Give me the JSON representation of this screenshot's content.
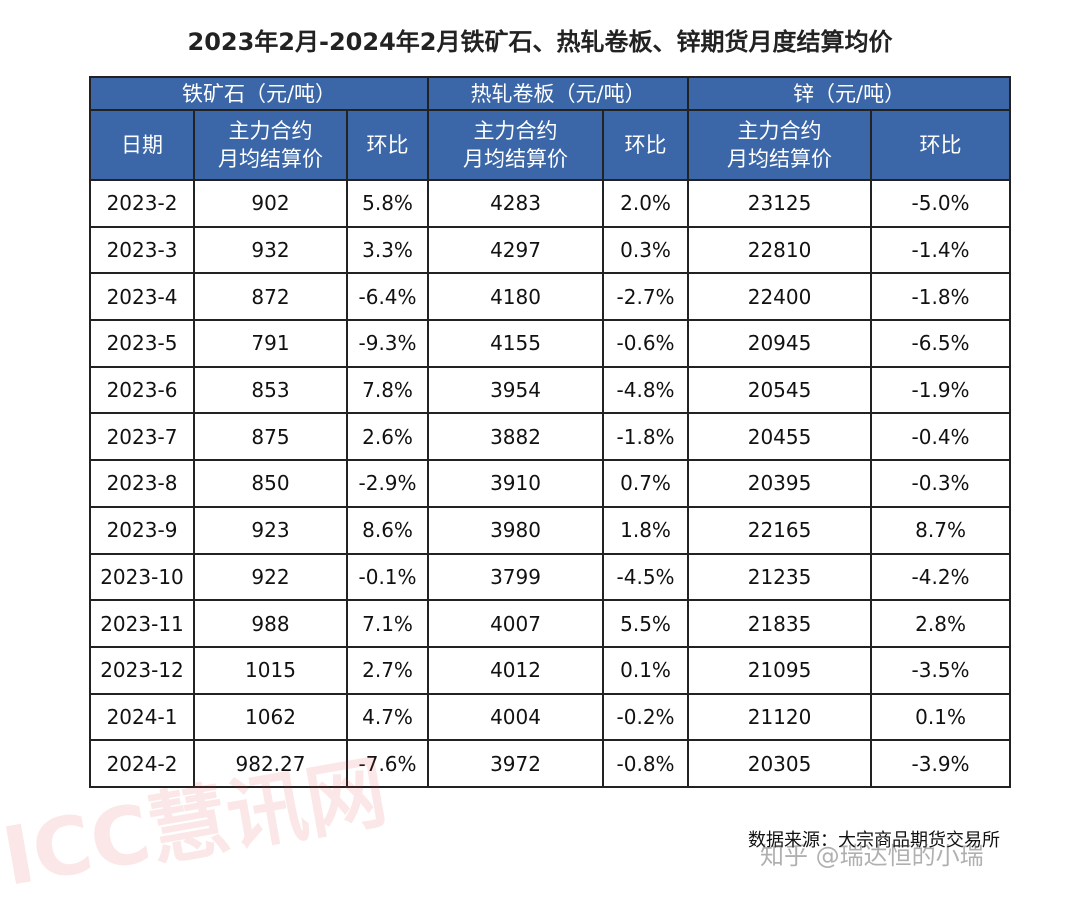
{
  "title": "2023年2月-2024年2月铁矿石、热轧卷板、锌期货月度结算均价",
  "table": {
    "groups": [
      "铁矿石（元/吨）",
      "热轧卷板（元/吨）",
      "锌（元/吨）"
    ],
    "columns": [
      "日期",
      "主力合约\n月均结算价",
      "环比",
      "主力合约\n月均结算价",
      "环比",
      "主力合约\n月均结算价",
      "环比"
    ],
    "rows": [
      [
        "2023-2",
        "902",
        "5.8%",
        "4283",
        "2.0%",
        "23125",
        "-5.0%"
      ],
      [
        "2023-3",
        "932",
        "3.3%",
        "4297",
        "0.3%",
        "22810",
        "-1.4%"
      ],
      [
        "2023-4",
        "872",
        "-6.4%",
        "4180",
        "-2.7%",
        "22400",
        "-1.8%"
      ],
      [
        "2023-5",
        "791",
        "-9.3%",
        "4155",
        "-0.6%",
        "20945",
        "-6.5%"
      ],
      [
        "2023-6",
        "853",
        "7.8%",
        "3954",
        "-4.8%",
        "20545",
        "-1.9%"
      ],
      [
        "2023-7",
        "875",
        "2.6%",
        "3882",
        "-1.8%",
        "20455",
        "-0.4%"
      ],
      [
        "2023-8",
        "850",
        "-2.9%",
        "3910",
        "0.7%",
        "20395",
        "-0.3%"
      ],
      [
        "2023-9",
        "923",
        "8.6%",
        "3980",
        "1.8%",
        "22165",
        "8.7%"
      ],
      [
        "2023-10",
        "922",
        "-0.1%",
        "3799",
        "-4.5%",
        "21235",
        "-4.2%"
      ],
      [
        "2023-11",
        "988",
        "7.1%",
        "4007",
        "5.5%",
        "21835",
        "2.8%"
      ],
      [
        "2023-12",
        "1015",
        "2.7%",
        "4012",
        "0.1%",
        "21095",
        "-3.5%"
      ],
      [
        "2024-1",
        "1062",
        "4.7%",
        "4004",
        "-0.2%",
        "21120",
        "0.1%"
      ],
      [
        "2024-2",
        "982.27",
        "-7.6%",
        "3972",
        "-0.8%",
        "20305",
        "-3.9%"
      ]
    ]
  },
  "source": "数据来源：大宗商品期货交易所",
  "watermarks": [
    "ICC慧讯网",
    "知乎 @瑞达恒的小瑞"
  ]
}
